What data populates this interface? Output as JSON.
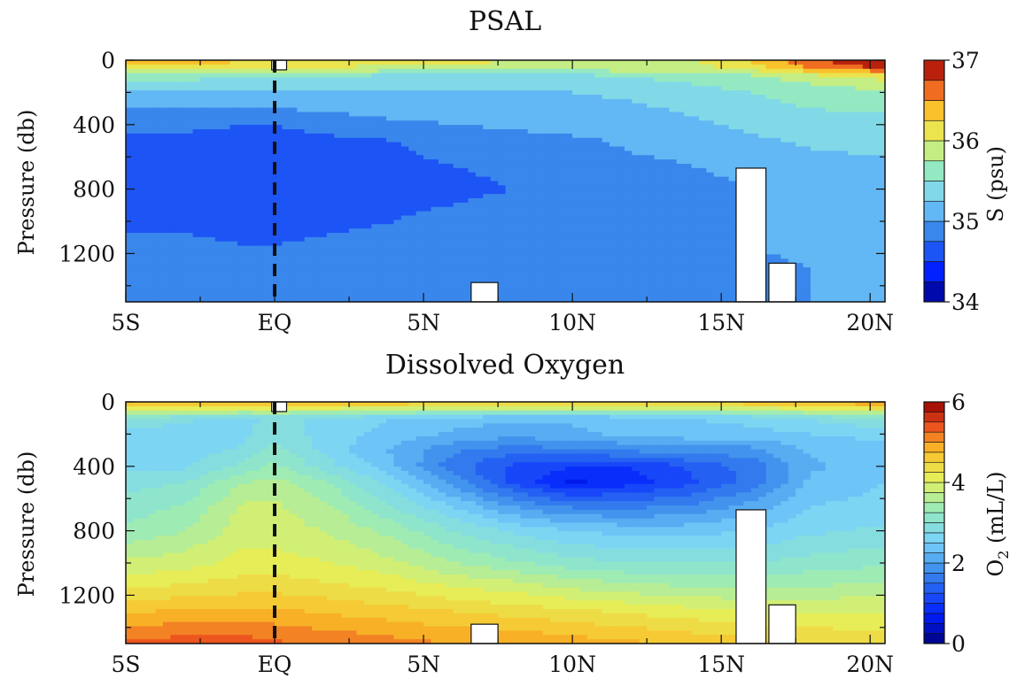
{
  "chart_data": [
    {
      "type": "heatmap",
      "title": "PSAL",
      "ylabel": "Pressure (db)",
      "x_ticks": [
        "5S",
        "EQ",
        "5N",
        "10N",
        "15N",
        "20N"
      ],
      "x_tick_values": [
        -5,
        0,
        5,
        10,
        15,
        20
      ],
      "xlim": [
        -5,
        20.5
      ],
      "y_ticks": [
        "0",
        "400",
        "800",
        "1200"
      ],
      "y_tick_values": [
        0,
        400,
        800,
        1200
      ],
      "ylim": [
        1500,
        0
      ],
      "y_reversed": true,
      "colorbar": {
        "label": "S (psu)",
        "ticks": [
          "34",
          "35",
          "36",
          "37"
        ],
        "tick_values": [
          34,
          35,
          36,
          37
        ],
        "range": [
          34,
          37
        ],
        "step": 0.25
      },
      "gaps": [
        {
          "x": [
            6.6,
            7.5
          ],
          "y": [
            1380,
            1500
          ]
        },
        {
          "x": [
            15.5,
            16.5
          ],
          "y": [
            670,
            1500
          ]
        },
        {
          "x": [
            16.6,
            17.5
          ],
          "y": [
            1260,
            1500
          ]
        },
        {
          "x": [
            -0.1,
            0.4
          ],
          "y": [
            0,
            60
          ]
        }
      ],
      "equator_line_x": 0,
      "field": {
        "x": [
          -5,
          -3,
          -1,
          0,
          2,
          4,
          6,
          8,
          10,
          12,
          14,
          16,
          18,
          20.5
        ],
        "y": [
          0,
          50,
          100,
          200,
          300,
          400,
          500,
          650,
          800,
          1000,
          1150,
          1300,
          1500
        ],
        "z": [
          [
            36.3,
            36.4,
            36.3,
            36.2,
            36.2,
            36.1,
            36.1,
            36.0,
            36.0,
            35.9,
            36.0,
            36.3,
            36.7,
            37.0
          ],
          [
            36.1,
            36.1,
            36.0,
            36.0,
            36.0,
            35.9,
            35.9,
            35.9,
            35.9,
            35.9,
            35.9,
            36.1,
            36.5,
            36.8
          ],
          [
            35.7,
            35.6,
            35.5,
            35.5,
            35.5,
            35.4,
            35.4,
            35.4,
            35.4,
            35.5,
            35.6,
            35.7,
            35.9,
            36.1
          ],
          [
            35.2,
            35.2,
            35.2,
            35.2,
            35.2,
            35.2,
            35.2,
            35.2,
            35.25,
            35.3,
            35.4,
            35.5,
            35.6,
            35.7
          ],
          [
            35.0,
            35.0,
            35.0,
            35.0,
            35.05,
            35.1,
            35.1,
            35.1,
            35.15,
            35.2,
            35.3,
            35.4,
            35.5,
            35.55
          ],
          [
            34.8,
            34.8,
            34.75,
            34.75,
            34.85,
            34.95,
            35.0,
            35.05,
            35.1,
            35.15,
            35.2,
            35.3,
            35.4,
            35.4
          ],
          [
            34.7,
            34.7,
            34.65,
            34.65,
            34.7,
            34.75,
            34.85,
            34.9,
            34.95,
            35.05,
            35.1,
            35.2,
            35.3,
            35.35
          ],
          [
            34.6,
            34.6,
            34.6,
            34.6,
            34.65,
            34.7,
            34.75,
            34.8,
            34.85,
            34.95,
            35.0,
            35.05,
            35.15,
            35.2
          ],
          [
            34.6,
            34.6,
            34.6,
            34.6,
            34.65,
            34.7,
            34.7,
            34.75,
            34.8,
            34.9,
            34.95,
            35.0,
            35.05,
            35.1
          ],
          [
            34.7,
            34.7,
            34.65,
            34.65,
            34.7,
            34.75,
            34.8,
            34.85,
            34.9,
            34.95,
            34.95,
            35.0,
            35.05,
            35.1
          ],
          [
            34.8,
            34.8,
            34.75,
            34.75,
            34.8,
            34.85,
            34.85,
            34.9,
            34.9,
            34.9,
            34.95,
            35.0,
            35.05,
            35.1
          ],
          [
            34.85,
            34.85,
            34.85,
            34.85,
            34.85,
            34.85,
            34.85,
            34.9,
            34.9,
            34.9,
            34.95,
            34.95,
            35.0,
            35.05
          ],
          [
            34.9,
            34.9,
            34.9,
            34.9,
            34.9,
            34.9,
            34.9,
            34.9,
            34.95,
            34.95,
            34.95,
            35.0,
            35.0,
            35.0
          ]
        ]
      }
    },
    {
      "type": "heatmap",
      "title": "Dissolved Oxygen",
      "ylabel": "Pressure (db)",
      "x_ticks": [
        "5S",
        "EQ",
        "5N",
        "10N",
        "15N",
        "20N"
      ],
      "x_tick_values": [
        -5,
        0,
        5,
        10,
        15,
        20
      ],
      "xlim": [
        -5,
        20.5
      ],
      "y_ticks": [
        "0",
        "400",
        "800",
        "1200"
      ],
      "y_tick_values": [
        0,
        400,
        800,
        1200
      ],
      "ylim": [
        1500,
        0
      ],
      "y_reversed": true,
      "colorbar": {
        "label": "O",
        "label_subscript": "2",
        "label_units": " (mL/L)",
        "ticks": [
          "0",
          "2",
          "4",
          "6"
        ],
        "tick_values": [
          0,
          2,
          4,
          6
        ],
        "range": [
          0,
          6
        ],
        "step": 0.25
      },
      "gaps": [
        {
          "x": [
            6.6,
            7.5
          ],
          "y": [
            1380,
            1500
          ]
        },
        {
          "x": [
            15.5,
            16.5
          ],
          "y": [
            670,
            1500
          ]
        },
        {
          "x": [
            16.6,
            17.5
          ],
          "y": [
            1260,
            1500
          ]
        },
        {
          "x": [
            -0.1,
            0.4
          ],
          "y": [
            0,
            60
          ]
        }
      ],
      "equator_line_x": 0,
      "field": {
        "x": [
          -5,
          -3,
          -1,
          0,
          2,
          4,
          6,
          8,
          10,
          12,
          14,
          16,
          18,
          20.5
        ],
        "y": [
          0,
          50,
          100,
          200,
          300,
          400,
          500,
          650,
          800,
          1000,
          1150,
          1300,
          1500
        ],
        "z": [
          [
            4.9,
            4.9,
            4.9,
            4.9,
            4.9,
            4.8,
            4.8,
            4.8,
            4.8,
            4.8,
            4.8,
            4.8,
            4.9,
            5.1
          ],
          [
            4.0,
            4.0,
            3.9,
            3.9,
            3.8,
            3.7,
            3.6,
            3.5,
            3.5,
            3.5,
            3.5,
            3.7,
            3.9,
            4.1
          ],
          [
            3.0,
            2.8,
            2.7,
            2.8,
            2.7,
            2.5,
            2.4,
            2.3,
            2.3,
            2.4,
            2.5,
            2.6,
            2.8,
            3.0
          ],
          [
            2.6,
            2.6,
            2.7,
            2.9,
            2.6,
            2.4,
            2.2,
            2.1,
            2.2,
            2.3,
            2.4,
            2.4,
            2.5,
            2.6
          ],
          [
            2.5,
            2.6,
            2.8,
            3.1,
            2.6,
            2.2,
            1.8,
            1.6,
            1.7,
            1.8,
            1.9,
            1.9,
            2.3,
            2.4
          ],
          [
            2.7,
            2.7,
            3.1,
            3.3,
            2.8,
            2.3,
            1.6,
            1.2,
            1.0,
            1.0,
            1.3,
            1.6,
            2.2,
            2.4
          ],
          [
            2.9,
            3.0,
            3.5,
            3.6,
            3.2,
            2.6,
            1.9,
            1.2,
            0.7,
            0.9,
            1.2,
            1.6,
            2.3,
            2.5
          ],
          [
            3.1,
            3.3,
            3.8,
            3.8,
            3.5,
            3.0,
            2.5,
            2.0,
            1.7,
            1.7,
            1.8,
            2.1,
            2.5,
            2.6
          ],
          [
            3.3,
            3.5,
            3.9,
            3.9,
            3.7,
            3.4,
            3.0,
            2.7,
            2.5,
            2.4,
            2.4,
            2.5,
            2.7,
            2.8
          ],
          [
            3.8,
            3.9,
            4.1,
            4.1,
            4.0,
            3.8,
            3.5,
            3.3,
            3.1,
            3.0,
            3.0,
            3.0,
            3.1,
            3.2
          ],
          [
            4.2,
            4.3,
            4.4,
            4.4,
            4.3,
            4.2,
            4.0,
            3.9,
            3.7,
            3.6,
            3.5,
            3.5,
            3.5,
            3.6
          ],
          [
            4.7,
            4.8,
            4.8,
            4.8,
            4.7,
            4.6,
            4.5,
            4.4,
            4.3,
            4.2,
            4.1,
            4.0,
            4.0,
            4.0
          ],
          [
            5.3,
            5.4,
            5.4,
            5.3,
            5.2,
            5.1,
            5.0,
            5.0,
            4.9,
            4.8,
            4.7,
            4.6,
            4.5,
            4.4
          ]
        ]
      }
    }
  ]
}
